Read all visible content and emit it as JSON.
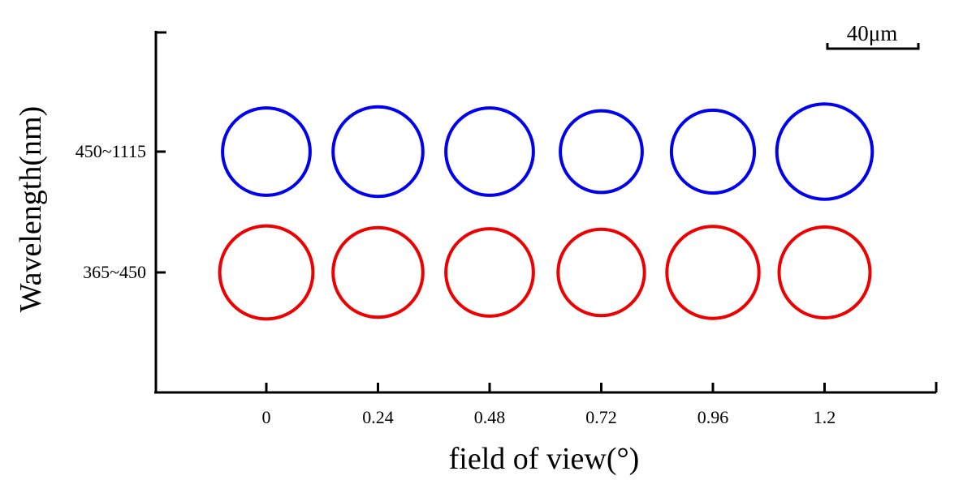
{
  "chart_data": {
    "type": "scatter",
    "xlabel": "field of view(°)",
    "ylabel": "Wavelength(nm)",
    "x_ticks": [
      "0",
      "0.24",
      "0.48",
      "0.72",
      "0.96",
      "1.2"
    ],
    "y_ticks": [
      "365~450",
      "450~1115"
    ],
    "scale_bar": {
      "label": "40μm",
      "length_um": 40
    },
    "grid": false,
    "series": [
      {
        "color": "#0000ee",
        "y_category": "450~1115",
        "x": [
          0,
          0.24,
          0.48,
          0.72,
          0.96,
          1.2
        ],
        "diameter_um": [
          38.5,
          39.5,
          38.5,
          36,
          36.5,
          42
        ]
      },
      {
        "color": "#ee0000",
        "y_category": "365~450",
        "x": [
          0,
          0.24,
          0.48,
          0.72,
          0.96,
          1.2
        ],
        "diameter_um": [
          41,
          39.5,
          38.5,
          38,
          40.5,
          40
        ]
      }
    ]
  }
}
